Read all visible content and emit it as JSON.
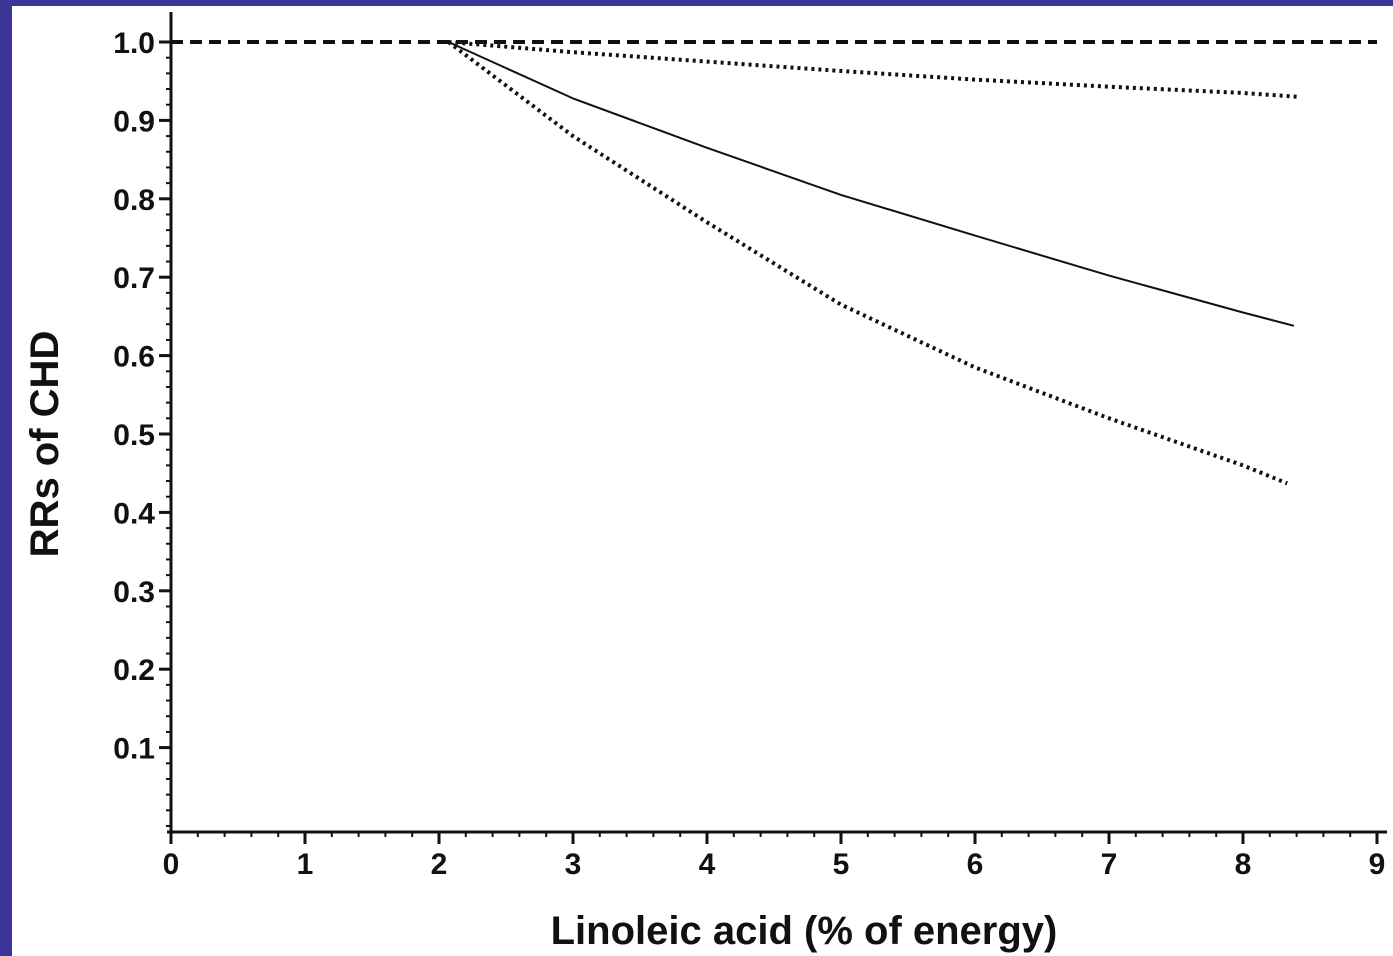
{
  "chart_data": {
    "type": "line",
    "title": "",
    "xlabel": "Linoleic acid (% of energy)",
    "ylabel": "RRs of CHD",
    "xlim": [
      0,
      9
    ],
    "ylim": [
      0,
      1.0
    ],
    "x_ticks": [
      "0",
      "1",
      "2",
      "3",
      "4",
      "5",
      "6",
      "7",
      "8",
      "9"
    ],
    "y_ticks": [
      "0.1",
      "0.2",
      "0.3",
      "0.4",
      "0.5",
      "0.6",
      "0.7",
      "0.8",
      "0.9",
      "1.0"
    ],
    "grid": false,
    "legend": "none",
    "series": [
      {
        "style": "dashed",
        "x": [
          0,
          9
        ],
        "y": [
          1.0,
          1.0
        ]
      },
      {
        "style": "dotted",
        "x": [
          2.07,
          3,
          4,
          5,
          6,
          7,
          8,
          8.42
        ],
        "y": [
          1.0,
          0.987,
          0.975,
          0.963,
          0.952,
          0.943,
          0.935,
          0.93
        ]
      },
      {
        "style": "solid",
        "x": [
          2.07,
          3,
          4,
          5,
          6,
          7,
          8,
          8.38
        ],
        "y": [
          1.0,
          0.928,
          0.865,
          0.805,
          0.753,
          0.702,
          0.655,
          0.638
        ]
      },
      {
        "style": "dotted",
        "x": [
          2.07,
          3,
          4,
          5,
          6,
          7,
          8,
          8.33
        ],
        "y": [
          1.0,
          0.88,
          0.77,
          0.665,
          0.585,
          0.52,
          0.46,
          0.437
        ]
      }
    ]
  }
}
